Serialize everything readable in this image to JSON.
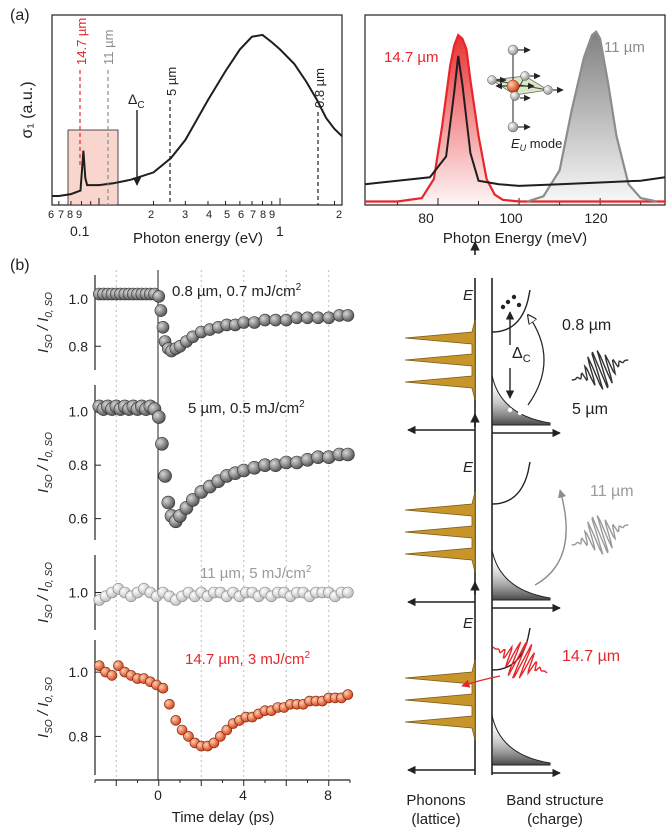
{
  "panel_labels": {
    "a": "(a)",
    "b": "(b)"
  },
  "colors": {
    "red": "#e8262a",
    "gray": "#8c8c8c",
    "dark": "#1e1e1e",
    "gold": "#c8952b",
    "pink": "#f6c5b8"
  },
  "icons": [
    "eu-mode-crystal-icon",
    "laser-pulse-icon",
    "phonon-dos-icon",
    "band-dos-icon",
    "electron-dots-icon"
  ],
  "chart_data": [
    {
      "type": "line",
      "panel": "a-left",
      "ylabel": "σ₁ (a.u.)",
      "xlabel": "Photon energy (eV)",
      "xscale": "log",
      "xlim": [
        0.055,
        2.2
      ],
      "ylim": [
        0,
        1.05
      ],
      "ticks_major": [
        "0.1",
        "1"
      ],
      "ticks_minor": [
        "6",
        "7",
        "8",
        "9",
        "2",
        "3",
        "4",
        "5",
        "6",
        "7",
        "8",
        "9",
        "2"
      ],
      "annotations": [
        "14.7 µm",
        "11 µm",
        "Δ_C",
        "5 µm",
        "0.8 µm"
      ],
      "series": [
        {
          "x": [
            0.055,
            0.06,
            0.07,
            0.079,
            0.082,
            0.084,
            0.086,
            0.09,
            0.1,
            0.12,
            0.15,
            0.2,
            0.25,
            0.3,
            0.4,
            0.5,
            0.6,
            0.7,
            0.8,
            0.9,
            1.0,
            1.2,
            1.4,
            1.6,
            1.8,
            2.0,
            2.2
          ],
          "y": [
            0.05,
            0.05,
            0.06,
            0.08,
            0.3,
            0.15,
            0.11,
            0.11,
            0.11,
            0.12,
            0.14,
            0.18,
            0.26,
            0.36,
            0.58,
            0.74,
            0.86,
            0.93,
            0.94,
            0.9,
            0.86,
            0.78,
            0.68,
            0.58,
            0.48,
            0.42,
            0.38
          ]
        }
      ]
    },
    {
      "type": "line",
      "panel": "a-right",
      "xlabel": "Photon Energy (meV)",
      "xlim": [
        62,
        136
      ],
      "ylim": [
        0,
        1.05
      ],
      "ticks": [
        "80",
        "100",
        "120"
      ],
      "annotations": [
        "14.7 µm",
        "11 µm",
        "Eu mode"
      ],
      "series": [
        {
          "name": "14.7 µm",
          "x": [
            62,
            70,
            76,
            79,
            81,
            83,
            84,
            85,
            86,
            87,
            88,
            90,
            92,
            94,
            96,
            100,
            136
          ],
          "y": [
            0.02,
            0.02,
            0.04,
            0.15,
            0.45,
            0.8,
            0.92,
            0.98,
            0.96,
            0.9,
            0.72,
            0.4,
            0.15,
            0.06,
            0.03,
            0.02,
            0.02
          ]
        },
        {
          "name": "11 µm",
          "x": [
            102,
            106,
            110,
            113,
            116,
            118,
            119,
            120,
            122,
            124,
            127,
            130,
            134
          ],
          "y": [
            0.02,
            0.05,
            0.2,
            0.55,
            0.85,
            0.98,
            1.0,
            0.96,
            0.7,
            0.4,
            0.12,
            0.04,
            0.02
          ]
        },
        {
          "name": "probe",
          "x": [
            62,
            70,
            78,
            82,
            84,
            85,
            86,
            88,
            90,
            95,
            100,
            110,
            120,
            130,
            136
          ],
          "y": [
            0.12,
            0.14,
            0.16,
            0.28,
            0.65,
            0.86,
            0.7,
            0.3,
            0.14,
            0.12,
            0.11,
            0.12,
            0.13,
            0.14,
            0.16
          ]
        }
      ]
    },
    {
      "type": "scatter",
      "panel": "b",
      "xlabel": "Time delay (ps)",
      "ylabel": "I_SO / I_0,SO",
      "xlim": [
        -3,
        9
      ],
      "xticks": [
        "0",
        "4",
        "8"
      ],
      "series": [
        {
          "name": "0.8 µm, 0.7 mJ/cm²",
          "ylim": [
            0.7,
            1.1
          ],
          "yticks": [
            "1.0",
            "0.8"
          ],
          "x": [
            -2.8,
            -2.6,
            -2.4,
            -2.2,
            -2.0,
            -1.8,
            -1.6,
            -1.4,
            -1.2,
            -1.0,
            -0.8,
            -0.6,
            -0.4,
            -0.2,
            0.0,
            0.1,
            0.2,
            0.3,
            0.45,
            0.6,
            0.8,
            1.0,
            1.3,
            1.6,
            2.0,
            2.4,
            2.8,
            3.2,
            3.6,
            4.0,
            4.5,
            5.0,
            5.5,
            6.0,
            6.5,
            7.0,
            7.5,
            8.0,
            8.5,
            8.9
          ],
          "y": [
            1.02,
            1.02,
            1.02,
            1.02,
            1.02,
            1.02,
            1.02,
            1.02,
            1.02,
            1.02,
            1.02,
            1.02,
            1.02,
            1.02,
            1.01,
            0.95,
            0.88,
            0.82,
            0.79,
            0.78,
            0.79,
            0.8,
            0.82,
            0.84,
            0.86,
            0.87,
            0.88,
            0.89,
            0.89,
            0.9,
            0.9,
            0.91,
            0.91,
            0.91,
            0.92,
            0.92,
            0.92,
            0.92,
            0.93,
            0.93
          ]
        },
        {
          "name": "5 µm, 0.5 mJ/cm²",
          "ylim": [
            0.52,
            1.1
          ],
          "yticks": [
            "1.0",
            "0.8",
            "0.6"
          ],
          "x": [
            -2.8,
            -2.6,
            -2.4,
            -2.2,
            -2.0,
            -1.8,
            -1.6,
            -1.4,
            -1.2,
            -1.0,
            -0.8,
            -0.6,
            -0.4,
            -0.2,
            0.0,
            0.15,
            0.3,
            0.45,
            0.6,
            0.8,
            1.0,
            1.3,
            1.6,
            2.0,
            2.4,
            2.8,
            3.2,
            3.6,
            4.0,
            4.5,
            5.0,
            5.5,
            6.0,
            6.5,
            7.0,
            7.5,
            8.0,
            8.5,
            8.9
          ],
          "y": [
            1.02,
            1.01,
            1.02,
            1.01,
            1.02,
            1.01,
            1.02,
            1.01,
            1.02,
            1.01,
            1.02,
            1.01,
            1.02,
            1.01,
            0.98,
            0.88,
            0.76,
            0.66,
            0.61,
            0.59,
            0.61,
            0.64,
            0.67,
            0.7,
            0.72,
            0.74,
            0.76,
            0.77,
            0.78,
            0.79,
            0.8,
            0.8,
            0.81,
            0.81,
            0.82,
            0.83,
            0.83,
            0.84,
            0.84
          ]
        },
        {
          "name": "11 µm, 5 mJ/cm²",
          "ylim": [
            0.9,
            1.1
          ],
          "yticks": [
            "1.0"
          ],
          "x": [
            -2.8,
            -2.5,
            -2.2,
            -1.9,
            -1.6,
            -1.3,
            -1.0,
            -0.7,
            -0.4,
            -0.1,
            0.2,
            0.5,
            0.8,
            1.1,
            1.4,
            1.7,
            2.0,
            2.3,
            2.6,
            2.9,
            3.2,
            3.5,
            3.8,
            4.1,
            4.4,
            4.7,
            5.0,
            5.3,
            5.6,
            5.9,
            6.2,
            6.5,
            6.8,
            7.1,
            7.4,
            7.7,
            8.0,
            8.3,
            8.6,
            8.9
          ],
          "y": [
            0.98,
            0.99,
            1.0,
            1.01,
            1.0,
            0.99,
            1.0,
            1.01,
            1.0,
            0.99,
            1.0,
            0.99,
            0.98,
            0.99,
            1.0,
            0.99,
            1.0,
            0.99,
            1.0,
            1.0,
            0.99,
            1.0,
            0.99,
            1.0,
            1.0,
            0.99,
            1.0,
            0.99,
            1.0,
            1.0,
            0.99,
            1.0,
            1.0,
            0.99,
            1.0,
            1.0,
            1.0,
            0.99,
            1.0,
            1.0
          ]
        },
        {
          "name": "14.7 µm, 3 mJ/cm²",
          "ylim": [
            0.68,
            1.1
          ],
          "yticks": [
            "1.0",
            "0.8"
          ],
          "x": [
            -2.8,
            -2.5,
            -2.2,
            -1.9,
            -1.6,
            -1.3,
            -1.0,
            -0.7,
            -0.4,
            -0.1,
            0.2,
            0.5,
            0.8,
            1.1,
            1.4,
            1.7,
            2.0,
            2.3,
            2.6,
            2.9,
            3.2,
            3.5,
            3.8,
            4.1,
            4.4,
            4.7,
            5.0,
            5.3,
            5.6,
            5.9,
            6.2,
            6.5,
            6.8,
            7.1,
            7.4,
            7.7,
            8.0,
            8.3,
            8.6,
            8.9
          ],
          "y": [
            1.02,
            1.0,
            0.99,
            1.02,
            1.0,
            0.99,
            0.98,
            0.98,
            0.97,
            0.96,
            0.95,
            0.9,
            0.85,
            0.82,
            0.8,
            0.78,
            0.77,
            0.77,
            0.78,
            0.8,
            0.82,
            0.84,
            0.85,
            0.86,
            0.86,
            0.87,
            0.88,
            0.88,
            0.89,
            0.89,
            0.9,
            0.9,
            0.9,
            0.91,
            0.91,
            0.91,
            0.92,
            0.92,
            0.92,
            0.93
          ]
        }
      ]
    }
  ],
  "panel_a": {
    "ylabel": "σ₁ (a.u.)",
    "xlabel": "Photon energy (eV)",
    "tick_01": "0.1",
    "tick_1": "1",
    "minor_left": [
      "6",
      "7",
      "8",
      "9"
    ],
    "minor_mid": [
      "2",
      "3",
      "4",
      "5",
      "6",
      "7",
      "8",
      "9"
    ],
    "minor_right": "2",
    "label_147": "14.7 µm",
    "label_11": "11 µm",
    "label_5": "5 µm",
    "label_08": "0.8 µm",
    "label_delta": "Δ",
    "label_delta_sub": "C"
  },
  "panel_a_right": {
    "xlabel": "Photon Energy (meV)",
    "tick_80": "80",
    "tick_100": "100",
    "tick_120": "120",
    "label_147": "14.7 µm",
    "label_11": "11 µm",
    "eu_mode": "E",
    "eu_sub": "U",
    "eu_rest": " mode"
  },
  "panel_b": {
    "xlabel": "Time delay (ps)",
    "ylabel_main": "I",
    "ylabel_sub": "SO",
    "ylabel_den": "I",
    "ylabel_densub": "0, SO",
    "x0": "0",
    "x4": "4",
    "x8": "8",
    "labels": {
      "s1_a": "0.8 µm, 0.7 mJ/cm",
      "s2_a": "5 µm, 0.5 mJ/cm",
      "s3_a": "11 µm, 5 mJ/cm",
      "s4_a": "14.7 µm, 3 mJ/cm",
      "sq": "2"
    }
  },
  "schematic": {
    "E": "E",
    "label_08": "0.8 µm",
    "label_5": "5 µm",
    "label_delta": "Δ",
    "label_delta_sub": "C",
    "label_11": "11 µm",
    "label_147": "14.7 µm",
    "phonons_1": "Phonons",
    "phonons_2": "(lattice)",
    "band_1": "Band structure",
    "band_2": "(charge)"
  }
}
